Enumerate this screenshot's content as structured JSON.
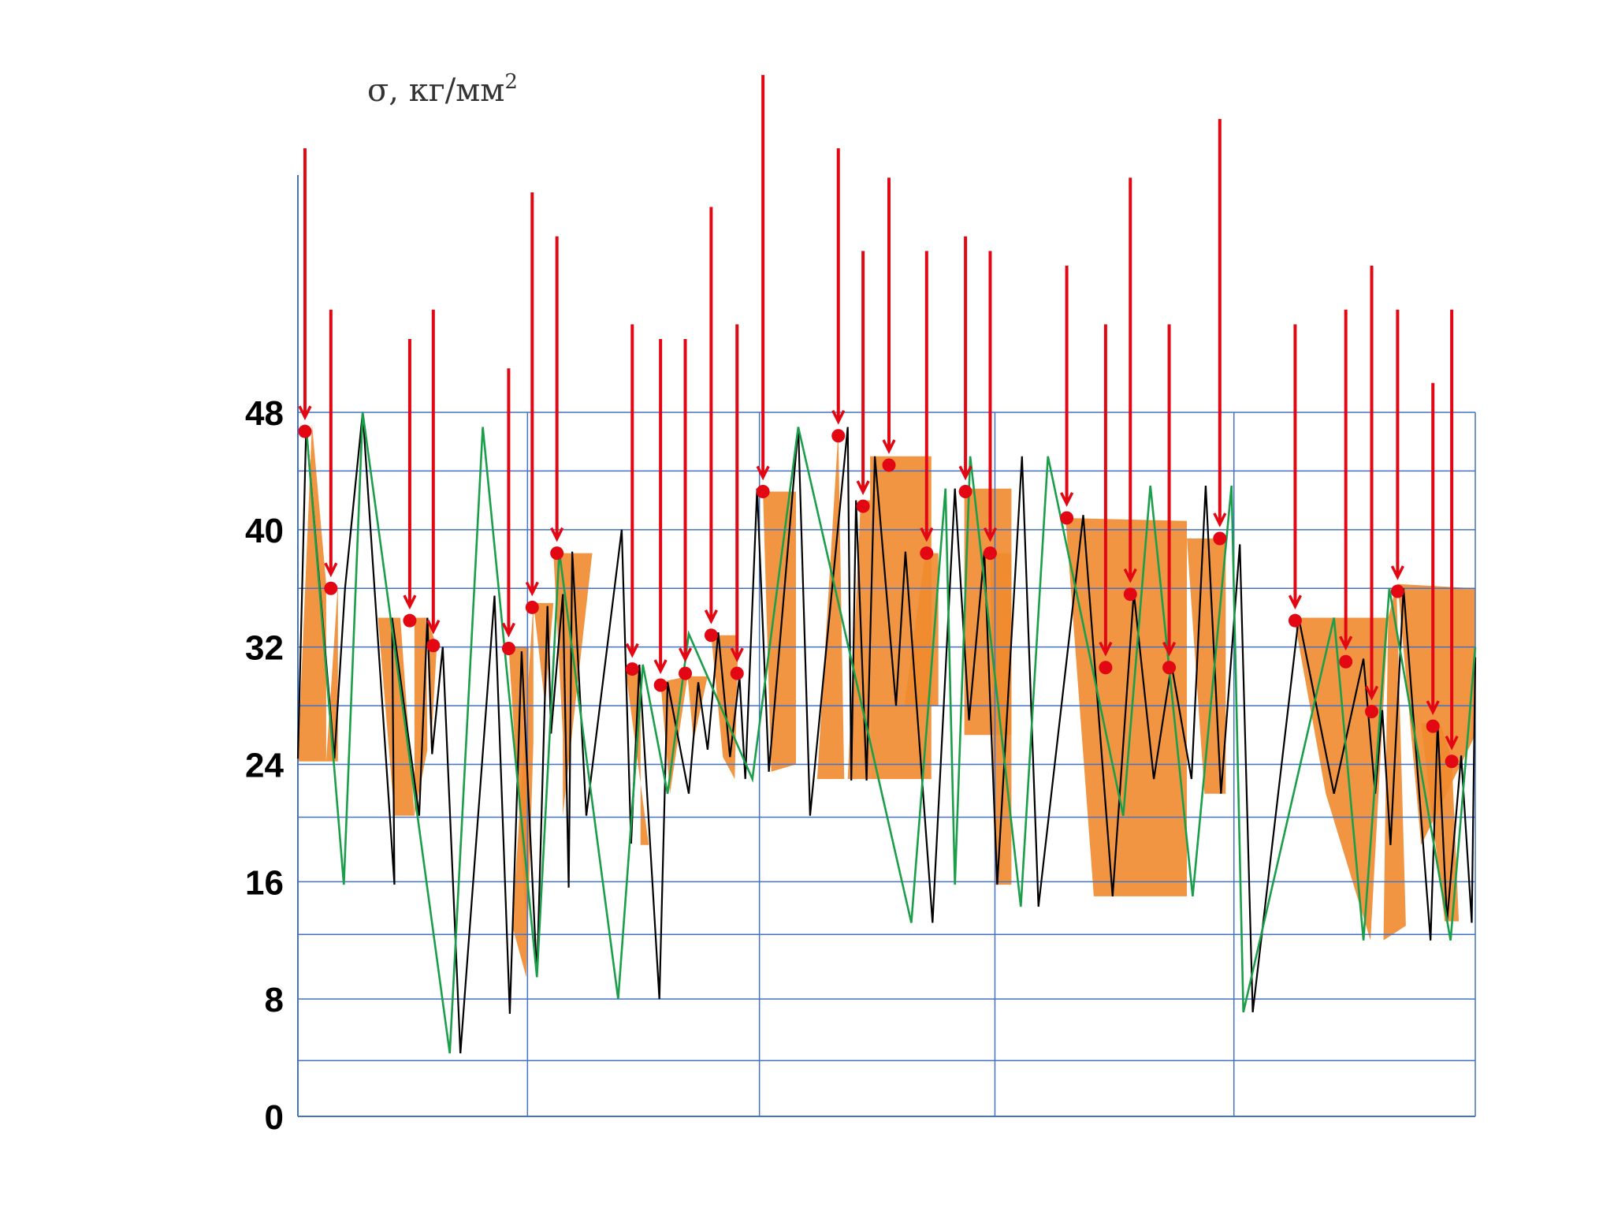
{
  "chart_data": {
    "type": "line",
    "title": "",
    "ylabel": "σ, кг/мм",
    "ylabel_superscript": "2",
    "xlabel": "",
    "ylim": [
      0,
      48
    ],
    "xlim": [
      0,
      100
    ],
    "y_ticks": [
      0,
      8,
      16,
      24,
      32,
      40,
      48
    ],
    "y_minor_grid": [
      3.8,
      12.4,
      20.4,
      28.0,
      36.0,
      44.0
    ],
    "x_sections": [
      19.5,
      39.2,
      59.2,
      79.5
    ],
    "colors": {
      "grid": "#4472c4",
      "axis": "#4472c4",
      "load_line": "#000000",
      "envelope_line": "#1a9e4a",
      "arrows": "#e30613",
      "points": "#e30613",
      "fill": "#f08a2e"
    },
    "series": [
      {
        "name": "load",
        "x": [
          0,
          0.7,
          3.1,
          4,
          5.5,
          8.2,
          8,
          10.3,
          11,
          11.4,
          12.3,
          13.8,
          16.7,
          18,
          19,
          20.3,
          21.2,
          21.5,
          22.5,
          23,
          23.3,
          24.5,
          27.5,
          28.3,
          29,
          30.7,
          31.4,
          33.2,
          34,
          34.8,
          35.7,
          36.7,
          37.5,
          38,
          39,
          40,
          42.5,
          43.5,
          46.7,
          47,
          47.4,
          48.3,
          49,
          50.8,
          51.6,
          53.9,
          55.8,
          57,
          58.3,
          59.4,
          61.5,
          62.9,
          66.7,
          69.2,
          71,
          72.7,
          74.2,
          75.9,
          77.1,
          78.4,
          80,
          81.1,
          85,
          88,
          90.5,
          91.5,
          92.1,
          92.8,
          93.9,
          96.2,
          96.8,
          97.6,
          98.8,
          99.7,
          100
        ],
        "y": [
          24.4,
          47,
          24.4,
          36,
          48,
          15.8,
          34,
          20.5,
          34,
          24.7,
          32,
          4.3,
          35.5,
          7,
          31.7,
          9.5,
          34.8,
          26.1,
          35.6,
          15.6,
          38.5,
          20.5,
          40,
          18.6,
          30.8,
          8,
          29.6,
          22,
          29.6,
          25,
          33,
          24.5,
          30,
          23,
          42.8,
          23.5,
          47,
          20.5,
          47,
          22.9,
          42,
          22.9,
          45,
          28,
          38.5,
          13.2,
          42.8,
          27,
          38.5,
          15.8,
          45,
          14.3,
          41,
          15,
          35.7,
          23,
          30.8,
          23,
          43,
          22,
          39,
          7.1,
          34,
          22,
          31.2,
          22,
          27.7,
          18.5,
          36,
          12,
          26.8,
          13.3,
          24.6,
          13.2,
          31.3
        ]
      },
      {
        "name": "envelope",
        "x": [
          0.7,
          3.9,
          5.5,
          12.9,
          15.7,
          20.3,
          22.2,
          27.2,
          29.3,
          31.4,
          33.2,
          38.6,
          42.5,
          52.1,
          55,
          55.8,
          57.1,
          61.4,
          63.7,
          70.1,
          72.4,
          76,
          79.3,
          80.3,
          88,
          90.5,
          92.7,
          97.9,
          100
        ],
        "y": [
          47,
          15.8,
          48,
          4.3,
          47,
          9.5,
          38.5,
          8,
          30.8,
          22,
          32.9,
          23,
          47,
          13.2,
          42.8,
          15.8,
          45,
          14.3,
          45,
          20.5,
          43,
          15,
          43,
          7.1,
          34,
          12,
          36,
          12,
          32
        ]
      }
    ],
    "red_marks": [
      {
        "x": 0.6,
        "y": 46.7,
        "top": 66
      },
      {
        "x": 2.8,
        "y": 36,
        "top": 55
      },
      {
        "x": 9.5,
        "y": 33.8,
        "top": 53
      },
      {
        "x": 11.5,
        "y": 32.1,
        "top": 55
      },
      {
        "x": 17.9,
        "y": 31.9,
        "top": 51
      },
      {
        "x": 19.9,
        "y": 34.7,
        "top": 63
      },
      {
        "x": 22.0,
        "y": 38.4,
        "top": 60
      },
      {
        "x": 28.4,
        "y": 30.5,
        "top": 54
      },
      {
        "x": 30.8,
        "y": 29.4,
        "top": 53
      },
      {
        "x": 32.9,
        "y": 30.2,
        "top": 53
      },
      {
        "x": 35.1,
        "y": 32.8,
        "top": 62
      },
      {
        "x": 37.3,
        "y": 30.2,
        "top": 54
      },
      {
        "x": 39.5,
        "y": 42.6,
        "top": 71
      },
      {
        "x": 45.9,
        "y": 46.4,
        "top": 66
      },
      {
        "x": 48.0,
        "y": 41.6,
        "top": 59
      },
      {
        "x": 50.2,
        "y": 44.4,
        "top": 64
      },
      {
        "x": 53.4,
        "y": 38.4,
        "top": 59
      },
      {
        "x": 56.7,
        "y": 42.6,
        "top": 60
      },
      {
        "x": 58.8,
        "y": 38.4,
        "top": 59
      },
      {
        "x": 65.3,
        "y": 40.8,
        "top": 58
      },
      {
        "x": 68.6,
        "y": 30.6,
        "top": 54
      },
      {
        "x": 70.7,
        "y": 35.6,
        "top": 64
      },
      {
        "x": 74.0,
        "y": 30.6,
        "top": 54
      },
      {
        "x": 78.3,
        "y": 39.4,
        "top": 68
      },
      {
        "x": 84.7,
        "y": 33.8,
        "top": 54
      },
      {
        "x": 89.0,
        "y": 31.0,
        "top": 55
      },
      {
        "x": 91.2,
        "y": 27.6,
        "top": 58
      },
      {
        "x": 93.4,
        "y": 35.8,
        "top": 55
      },
      {
        "x": 96.4,
        "y": 26.6,
        "top": 50
      },
      {
        "x": 98.0,
        "y": 24.2,
        "top": 55
      }
    ],
    "fill_regions": [
      {
        "x": [
          0,
          1.2,
          2.4,
          2.4
        ],
        "y": [
          24.2,
          47.2,
          36.3,
          24.2
        ]
      },
      {
        "x": [
          2.4,
          3.4,
          3.4,
          2.4
        ],
        "y": [
          24.2,
          36.3,
          24.2,
          24.2
        ]
      },
      {
        "x": [
          6.8,
          8.7,
          9.9,
          8.2
        ],
        "y": [
          34,
          34,
          20.5,
          20.5
        ]
      },
      {
        "x": [
          9.9,
          10.9,
          11.0,
          9.9
        ],
        "y": [
          34,
          34,
          25,
          20.5
        ]
      },
      {
        "x": [
          10.9,
          11.8,
          11.3
        ],
        "y": [
          34,
          32.1,
          25
        ]
      },
      {
        "x": [
          17.9,
          19.6,
          19.4
        ],
        "y": [
          32,
          32,
          13
        ]
      },
      {
        "x": [
          18.2,
          20.0,
          20.0,
          19.4
        ],
        "y": [
          13,
          35,
          25.5,
          9.5
        ]
      },
      {
        "x": [
          20.0,
          21.7,
          21.0
        ],
        "y": [
          35,
          35,
          28
        ]
      },
      {
        "x": [
          21.7,
          25.0,
          22.5,
          22.5
        ],
        "y": [
          38.4,
          38.4,
          20.5,
          26
        ]
      },
      {
        "x": [
          27.8,
          29.1,
          29.1,
          29.8
        ],
        "y": [
          30.6,
          30.6,
          18.5,
          18.5
        ]
      },
      {
        "x": [
          30.8,
          33.1,
          31.6
        ],
        "y": [
          29.6,
          30,
          22
        ]
      },
      {
        "x": [
          33.1,
          34.8,
          33.6
        ],
        "y": [
          30,
          30,
          25.6
        ]
      },
      {
        "x": [
          35.1,
          37.4,
          37.1,
          36.1
        ],
        "y": [
          32.8,
          32.8,
          23,
          24.5
        ]
      },
      {
        "x": [
          39.5,
          42.3,
          42.3,
          40.2
        ],
        "y": [
          42.6,
          42.6,
          24,
          23.5
        ]
      },
      {
        "x": [
          44.1,
          45.9,
          46.4,
          44.1
        ],
        "y": [
          23,
          46.7,
          23,
          23
        ]
      },
      {
        "x": [
          47.8,
          48.6,
          48.6,
          46.7
        ],
        "y": [
          42,
          42,
          23,
          23
        ]
      },
      {
        "x": [
          48.6,
          53.8,
          53.8,
          48.6
        ],
        "y": [
          45,
          45,
          23,
          23
        ]
      },
      {
        "x": [
          53.3,
          54.4,
          54.4,
          51.5
        ],
        "y": [
          38.4,
          38.4,
          28,
          28
        ]
      },
      {
        "x": [
          56.6,
          60.6,
          60.6,
          56.6
        ],
        "y": [
          42.8,
          42.8,
          26,
          26
        ]
      },
      {
        "x": [
          58.8,
          60.6,
          60.6,
          59.2
        ],
        "y": [
          38.4,
          38.4,
          15.8,
          15.8
        ]
      },
      {
        "x": [
          65.2,
          75.5,
          75.5,
          67.6
        ],
        "y": [
          40.8,
          40.6,
          15,
          15
        ]
      },
      {
        "x": [
          75.5,
          78.8,
          78.8,
          77.0
        ],
        "y": [
          39.4,
          39.4,
          22,
          22
        ]
      },
      {
        "x": [
          84.6,
          92.6,
          91.1,
          87.3
        ],
        "y": [
          34,
          34,
          12,
          22
        ]
      },
      {
        "x": [
          92.6,
          93.3,
          94.1,
          92.2
        ],
        "y": [
          34,
          36.2,
          13,
          12
        ]
      },
      {
        "x": [
          93.4,
          100,
          100,
          95.4
        ],
        "y": [
          36.3,
          36,
          26,
          18.5
        ]
      },
      {
        "x": [
          95.4,
          97.0,
          98.0,
          98.6,
          97.4
        ],
        "y": [
          26.8,
          26.8,
          24.4,
          13.3,
          13.3
        ]
      }
    ]
  }
}
